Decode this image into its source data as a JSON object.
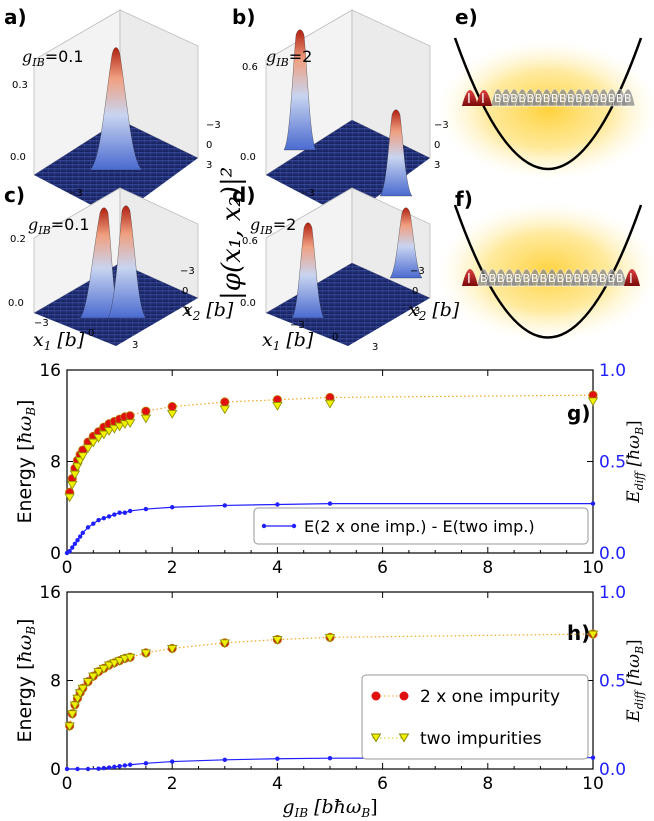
{
  "panels": {
    "a": {
      "label": "a)",
      "g": "g_IB=0.1",
      "g_main": "g",
      "g_sub": "IB",
      "g_val": "=0.1",
      "zmax": "0.3",
      "zmin": "0.0",
      "xt": [
        "−3",
        "0",
        "3"
      ],
      "yt": [
        "−3",
        "0",
        "3"
      ]
    },
    "b": {
      "label": "b)",
      "g_main": "g",
      "g_sub": "IB",
      "g_val": "=2",
      "zmax": "0.6",
      "zmin": "0.0",
      "xt": [
        "−3",
        "0",
        "3"
      ],
      "yt": [
        "−3",
        "0",
        "3"
      ]
    },
    "c": {
      "label": "c)",
      "g_main": "g",
      "g_sub": "IB",
      "g_val": "=0.1",
      "zmax": "0.2",
      "zmin": "0.0",
      "xt": [
        "−3",
        "0",
        "3"
      ],
      "yt": [
        "−3",
        "0",
        "3"
      ]
    },
    "d": {
      "label": "d)",
      "g_main": "g",
      "g_sub": "IB",
      "g_val": "=2",
      "zmax": "0.6",
      "zmin": "0.0",
      "xt": [
        "−3",
        "0",
        "3"
      ],
      "yt": [
        "−3",
        "0",
        "3"
      ]
    },
    "e": {
      "label": "e)"
    },
    "f": {
      "label": "f)"
    },
    "g": {
      "label": "g)"
    },
    "h": {
      "label": "h)"
    }
  },
  "surface_axes": {
    "x1_label": "x",
    "x1_sub": "1",
    "x1_unit": "[b]",
    "x2_label": "x",
    "x2_sub": "2",
    "x2_unit": "[b]",
    "z_label": "|φ(x₁, x₂)|²"
  },
  "cartoon": {
    "boson_letter": "B",
    "impurity_letter": "I"
  },
  "colors": {
    "impurity": "#b01818",
    "boson": "#8a8a8a",
    "trap": "#000000",
    "glow": "#ffd23c",
    "blue": "#1f1fff",
    "orange": "#f5a623",
    "red": "#e01010",
    "yellow": "#f0f000"
  },
  "chart_data": [
    {
      "id": "g",
      "type": "line",
      "xlabel": "",
      "ylabel": "Energy [ħω_B]",
      "ylabel_parts": {
        "main": "Energy [",
        "h": "ħω",
        "sub": "B",
        "close": "]"
      },
      "y2label_parts": {
        "main": "E",
        "sub": "diff",
        "unit": " [ħω",
        "usub": "B",
        "close": "]"
      },
      "xlim": [
        0,
        10
      ],
      "ylim": [
        0,
        16
      ],
      "y2lim": [
        0,
        1.0
      ],
      "xticks": [
        "0",
        "2",
        "4",
        "6",
        "8",
        "10"
      ],
      "yticks": [
        "0",
        "8",
        "16"
      ],
      "y2ticks": [
        "0.0",
        "0.5",
        "1.0"
      ],
      "grid": false,
      "legend": "bottom-right",
      "series": [
        {
          "name": "2 x one impurity",
          "axis": "left",
          "marker": "circle",
          "x": [
            0.05,
            0.1,
            0.15,
            0.2,
            0.25,
            0.3,
            0.4,
            0.5,
            0.6,
            0.7,
            0.8,
            0.9,
            1.0,
            1.1,
            1.2,
            1.5,
            2,
            3,
            4,
            5,
            10
          ],
          "y": [
            5.3,
            6.5,
            7.4,
            8.1,
            8.6,
            9.0,
            9.7,
            10.2,
            10.6,
            11.0,
            11.3,
            11.5,
            11.7,
            11.9,
            12.0,
            12.4,
            12.8,
            13.2,
            13.4,
            13.6,
            13.8
          ]
        },
        {
          "name": "two impurities",
          "axis": "left",
          "marker": "triangle",
          "x": [
            0.05,
            0.1,
            0.15,
            0.2,
            0.25,
            0.3,
            0.4,
            0.5,
            0.6,
            0.7,
            0.8,
            0.9,
            1.0,
            1.1,
            1.2,
            1.5,
            2,
            3,
            4,
            5,
            10
          ],
          "y": [
            4.9,
            6.0,
            6.9,
            7.6,
            8.1,
            8.5,
            9.2,
            9.7,
            10.1,
            10.4,
            10.7,
            10.9,
            11.1,
            11.3,
            11.4,
            11.8,
            12.2,
            12.6,
            12.9,
            13.1,
            13.3
          ]
        },
        {
          "name": "E(2 x one imp.) - E(two imp.)",
          "axis": "right",
          "marker": "dot",
          "x": [
            0,
            0.05,
            0.1,
            0.15,
            0.2,
            0.25,
            0.3,
            0.4,
            0.5,
            0.6,
            0.7,
            0.8,
            0.9,
            1.0,
            1.1,
            1.2,
            1.5,
            2,
            3,
            4,
            5,
            10
          ],
          "y": [
            0.0,
            0.01,
            0.03,
            0.05,
            0.07,
            0.09,
            0.11,
            0.14,
            0.16,
            0.18,
            0.19,
            0.2,
            0.21,
            0.22,
            0.22,
            0.23,
            0.24,
            0.25,
            0.26,
            0.265,
            0.27,
            0.27
          ]
        }
      ]
    },
    {
      "id": "h",
      "type": "line",
      "xlabel": "g_IB [bħω_B]",
      "xlabel_parts": {
        "g": "g",
        "sub": "IB",
        "unit": " [bħω",
        "usub": "B",
        "close": "]"
      },
      "ylabel": "Energy [ħω_B]",
      "ylabel_parts": {
        "main": "Energy [",
        "h": "ħω",
        "sub": "B",
        "close": "]"
      },
      "y2label_parts": {
        "main": "E",
        "sub": "diff",
        "unit": " [ħω",
        "usub": "B",
        "close": "]"
      },
      "xlim": [
        0,
        10
      ],
      "ylim": [
        0,
        16
      ],
      "y2lim": [
        0,
        1.0
      ],
      "xticks": [
        "0",
        "2",
        "4",
        "6",
        "8",
        "10"
      ],
      "yticks": [
        "0",
        "8",
        "16"
      ],
      "y2ticks": [
        "0.0",
        "0.5",
        "1.0"
      ],
      "grid": false,
      "legend": "bottom-right",
      "series": [
        {
          "name": "2 x one impurity",
          "axis": "left",
          "marker": "circle",
          "x": [
            0.05,
            0.1,
            0.15,
            0.2,
            0.25,
            0.3,
            0.4,
            0.5,
            0.6,
            0.7,
            0.8,
            0.9,
            1.0,
            1.1,
            1.2,
            1.5,
            2,
            3,
            4,
            5,
            10
          ],
          "y": [
            3.9,
            5.0,
            5.8,
            6.4,
            6.9,
            7.3,
            7.9,
            8.4,
            8.8,
            9.1,
            9.4,
            9.6,
            9.8,
            10.0,
            10.1,
            10.5,
            10.9,
            11.4,
            11.7,
            11.9,
            12.2
          ]
        },
        {
          "name": "two impurities",
          "axis": "left",
          "marker": "triangle",
          "x": [
            0.05,
            0.1,
            0.15,
            0.2,
            0.25,
            0.3,
            0.4,
            0.5,
            0.6,
            0.7,
            0.8,
            0.9,
            1.0,
            1.1,
            1.2,
            1.5,
            2,
            3,
            4,
            5,
            10
          ],
          "y": [
            3.9,
            5.0,
            5.8,
            6.4,
            6.9,
            7.3,
            7.9,
            8.4,
            8.8,
            9.1,
            9.4,
            9.6,
            9.8,
            10.0,
            10.1,
            10.5,
            10.9,
            11.4,
            11.7,
            11.9,
            12.2
          ]
        },
        {
          "name": "",
          "axis": "right",
          "marker": "dot",
          "x": [
            0,
            0.2,
            0.4,
            0.6,
            0.7,
            0.8,
            0.9,
            1.0,
            1.1,
            1.2,
            1.5,
            2,
            3,
            4,
            5,
            10
          ],
          "y": [
            0.0,
            0.0,
            0.0,
            0.002,
            0.005,
            0.008,
            0.012,
            0.016,
            0.02,
            0.024,
            0.032,
            0.042,
            0.052,
            0.058,
            0.061,
            0.064
          ]
        }
      ]
    }
  ]
}
